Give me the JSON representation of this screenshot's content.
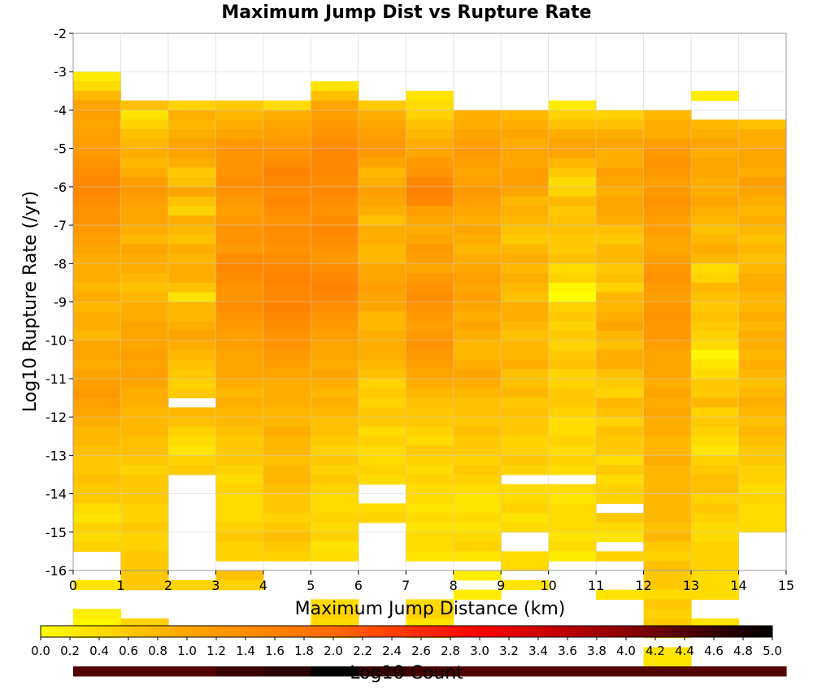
{
  "chart_data": {
    "type": "heatmap",
    "title": "Maximum Jump Dist vs Rupture Rate",
    "xlabel": "Maximum Jump Distance (km)",
    "ylabel": "Log10 Rupture Rate (/yr)",
    "colorbar_label": "Log10 Count",
    "xlim": [
      0,
      15
    ],
    "ylim": [
      -16,
      -2
    ],
    "x_ticks": [
      "0",
      "1",
      "2",
      "3",
      "4",
      "5",
      "6",
      "7",
      "8",
      "9",
      "10",
      "11",
      "12",
      "13",
      "14",
      "15"
    ],
    "y_ticks": [
      "-2",
      "-3",
      "-4",
      "-5",
      "-6",
      "-7",
      "-8",
      "-9",
      "-10",
      "-11",
      "-12",
      "-13",
      "-14",
      "-15",
      "-16"
    ],
    "colorbar_ticks": [
      "0.0",
      "0.2",
      "0.4",
      "0.6",
      "0.8",
      "1.0",
      "1.2",
      "1.4",
      "1.6",
      "1.8",
      "2.0",
      "2.2",
      "2.4",
      "2.6",
      "2.8",
      "3.0",
      "3.2",
      "3.4",
      "3.6",
      "3.8",
      "4.0",
      "4.2",
      "4.4",
      "4.6",
      "4.8",
      "5.0"
    ],
    "color_range": [
      0,
      5
    ],
    "colormap": [
      "#ffff00",
      "#ffa500",
      "#ff6a00",
      "#ff0000",
      "#8b0000",
      "#000000"
    ],
    "x_bin_edges": [
      0,
      1,
      2,
      3,
      4,
      5,
      6,
      7,
      8,
      9,
      10,
      11,
      12,
      13,
      14,
      15
    ],
    "y_bin_width": 0.25,
    "y_bin_top": -2,
    "grid": true,
    "columns": [
      [
        null,
        null,
        null,
        null,
        0.2,
        0.4,
        0.8,
        1.0,
        1.1,
        1.0,
        1.1,
        1.1,
        1.2,
        1.3,
        1.4,
        1.5,
        1.5,
        1.4,
        1.3,
        1.3,
        1.2,
        1.1,
        1.0,
        0.9,
        0.9,
        0.9,
        0.8,
        0.9,
        0.8,
        0.9,
        0.9,
        0.8,
        1.0,
        1.0,
        0.9,
        1.0,
        1.1,
        1.2,
        1.1,
        1.0,
        0.9,
        0.8,
        0.8,
        0.7,
        0.6,
        0.6,
        0.7,
        0.6,
        0.6,
        0.4,
        0.3,
        0.5,
        0.4,
        0.5,
        null,
        null,
        null,
        0.3,
        null,
        null,
        0.2,
        0.1,
        0.1,
        null,
        null,
        null,
        4.4
      ],
      [
        null,
        null,
        null,
        null,
        null,
        null,
        null,
        0.7,
        0.3,
        0.5,
        0.7,
        0.8,
        0.9,
        0.8,
        0.9,
        1.1,
        1.2,
        1.1,
        1.0,
        1.0,
        0.9,
        0.8,
        1.0,
        0.9,
        0.9,
        0.8,
        0.7,
        0.8,
        0.9,
        0.9,
        1.0,
        1.0,
        1.0,
        1.1,
        1.0,
        1.1,
        1.0,
        0.9,
        0.9,
        0.8,
        0.8,
        0.8,
        0.7,
        0.7,
        0.6,
        0.5,
        0.6,
        0.6,
        0.6,
        0.5,
        0.5,
        0.6,
        0.5,
        0.5,
        0.6,
        0.6,
        0.6,
        0.6,
        null,
        null,
        null,
        0.5,
        null,
        null,
        null,
        null,
        4.4
      ],
      [
        null,
        null,
        null,
        null,
        null,
        null,
        null,
        0.5,
        0.9,
        0.8,
        0.9,
        1.0,
        1.0,
        0.9,
        0.6,
        0.7,
        1.0,
        0.7,
        0.5,
        0.9,
        0.8,
        0.7,
        0.9,
        0.8,
        0.9,
        0.9,
        0.7,
        0.3,
        0.8,
        0.8,
        0.9,
        1.0,
        0.9,
        0.8,
        0.7,
        0.6,
        0.5,
        0.6,
        null,
        0.8,
        0.7,
        0.5,
        0.4,
        0.3,
        0.5,
        0.6,
        null,
        null,
        null,
        null,
        null,
        null,
        null,
        null,
        null,
        null,
        null,
        0.5,
        null,
        null,
        null,
        null,
        null,
        null,
        null,
        null,
        4.4
      ],
      [
        null,
        null,
        null,
        null,
        null,
        null,
        null,
        0.6,
        0.8,
        0.9,
        1.0,
        1.2,
        1.3,
        1.3,
        1.3,
        1.4,
        1.3,
        1.2,
        1.1,
        1.2,
        1.3,
        1.3,
        1.2,
        1.4,
        1.5,
        1.4,
        1.3,
        1.3,
        1.4,
        1.3,
        1.2,
        1.1,
        1.1,
        1.0,
        1.0,
        1.0,
        0.9,
        0.8,
        0.9,
        0.8,
        0.8,
        0.7,
        0.6,
        0.6,
        0.6,
        0.5,
        0.4,
        0.5,
        0.4,
        0.4,
        0.4,
        0.5,
        0.6,
        0.5,
        0.5,
        null,
        0.7,
        0.5,
        null,
        null,
        null,
        null,
        null,
        null,
        null,
        null,
        4.6
      ],
      [
        null,
        null,
        null,
        null,
        null,
        null,
        null,
        0.4,
        0.9,
        1.0,
        1.1,
        1.2,
        1.3,
        1.4,
        1.6,
        1.5,
        1.4,
        1.5,
        1.4,
        1.3,
        1.4,
        1.4,
        1.3,
        1.4,
        1.5,
        1.6,
        1.5,
        1.5,
        1.6,
        1.5,
        1.4,
        1.3,
        1.3,
        1.2,
        1.1,
        1.0,
        0.9,
        0.9,
        0.9,
        0.8,
        0.8,
        0.9,
        0.8,
        0.8,
        0.7,
        0.8,
        0.8,
        0.7,
        0.6,
        0.6,
        0.5,
        0.6,
        0.7,
        0.6,
        0.5,
        null,
        null,
        null,
        null,
        null,
        null,
        null,
        null,
        null,
        null,
        null,
        4.7
      ],
      [
        null,
        null,
        null,
        null,
        null,
        0.3,
        0.7,
        1.0,
        1.1,
        1.2,
        1.3,
        1.4,
        1.5,
        1.5,
        1.5,
        1.4,
        1.5,
        1.4,
        1.3,
        1.4,
        1.5,
        1.4,
        1.3,
        1.2,
        1.4,
        1.5,
        1.6,
        1.5,
        1.4,
        1.3,
        1.2,
        1.1,
        1.0,
        1.0,
        0.9,
        1.0,
        0.9,
        0.8,
        0.9,
        0.8,
        0.7,
        0.7,
        0.6,
        0.5,
        0.6,
        0.5,
        0.6,
        0.5,
        0.4,
        0.4,
        0.5,
        0.4,
        0.5,
        0.3,
        0.4,
        null,
        null,
        null,
        null,
        0.4,
        0.5,
        0.4,
        0.3,
        null,
        null,
        null,
        5.0
      ],
      [
        null,
        null,
        null,
        null,
        null,
        null,
        null,
        0.6,
        0.9,
        1.0,
        1.1,
        1.2,
        1.2,
        1.0,
        0.8,
        0.9,
        1.1,
        1.0,
        0.9,
        0.7,
        0.9,
        0.9,
        0.8,
        0.8,
        1.0,
        1.0,
        1.1,
        1.0,
        1.0,
        0.8,
        0.8,
        0.9,
        0.9,
        0.9,
        0.8,
        0.7,
        0.5,
        0.6,
        0.5,
        0.6,
        0.6,
        0.4,
        0.5,
        0.4,
        0.4,
        0.5,
        0.4,
        null,
        null,
        0.4,
        0.5,
        null,
        null,
        null,
        null,
        null,
        null,
        null,
        null,
        null,
        null,
        null,
        null,
        null,
        null,
        null,
        4.6
      ],
      [
        null,
        null,
        null,
        null,
        null,
        null,
        0.3,
        0.4,
        0.5,
        0.7,
        0.8,
        0.9,
        1.0,
        1.2,
        1.3,
        1.5,
        1.6,
        1.5,
        1.1,
        1.0,
        0.9,
        1.0,
        1.2,
        1.1,
        1.0,
        1.2,
        1.3,
        1.4,
        1.3,
        1.2,
        1.1,
        1.2,
        1.3,
        1.2,
        1.1,
        1.0,
        0.9,
        0.8,
        0.7,
        0.6,
        0.6,
        0.5,
        0.4,
        0.6,
        0.5,
        0.4,
        0.5,
        0.4,
        0.4,
        0.3,
        0.4,
        0.3,
        0.4,
        0.4,
        0.3,
        null,
        null,
        null,
        null,
        0.4,
        0.5,
        0.3,
        0.5,
        null,
        null,
        null,
        4.5
      ],
      [
        null,
        null,
        null,
        null,
        null,
        null,
        null,
        null,
        0.9,
        0.9,
        1.0,
        1.1,
        1.2,
        1.1,
        1.0,
        1.1,
        1.2,
        1.1,
        1.0,
        0.9,
        1.0,
        0.9,
        0.8,
        0.9,
        1.0,
        1.1,
        1.0,
        1.1,
        1.0,
        0.9,
        1.0,
        0.9,
        0.8,
        0.8,
        0.9,
        1.0,
        0.9,
        0.8,
        0.7,
        0.7,
        0.6,
        0.7,
        0.6,
        0.6,
        0.5,
        0.6,
        0.5,
        0.4,
        0.3,
        0.3,
        0.4,
        0.3,
        0.4,
        0.5,
        0.3,
        null,
        0.2,
        null,
        0.2,
        null,
        null,
        null,
        null,
        null,
        null,
        null,
        4.4
      ],
      [
        null,
        null,
        null,
        null,
        null,
        null,
        null,
        null,
        0.8,
        0.9,
        1.0,
        0.9,
        1.0,
        1.0,
        1.1,
        1.1,
        1.0,
        0.8,
        0.9,
        0.8,
        0.7,
        0.6,
        0.8,
        0.9,
        0.8,
        0.9,
        0.8,
        0.7,
        0.9,
        0.9,
        0.8,
        0.7,
        0.8,
        0.8,
        0.9,
        0.7,
        0.7,
        0.8,
        0.6,
        0.7,
        0.6,
        0.6,
        0.5,
        0.5,
        0.6,
        0.5,
        null,
        0.4,
        0.4,
        0.5,
        0.3,
        0.4,
        null,
        null,
        0.4,
        0.4,
        null,
        0.3,
        null,
        null,
        null,
        null,
        null,
        null,
        null,
        null,
        4.4
      ],
      [
        null,
        null,
        null,
        null,
        null,
        null,
        null,
        0.2,
        0.5,
        0.7,
        0.9,
        1.0,
        1.0,
        0.8,
        0.6,
        0.4,
        0.5,
        0.8,
        0.6,
        0.7,
        0.7,
        0.6,
        0.6,
        0.7,
        0.4,
        0.5,
        0.1,
        0.0,
        0.5,
        0.6,
        0.5,
        0.6,
        0.5,
        0.6,
        0.7,
        0.5,
        0.5,
        0.6,
        0.6,
        0.5,
        0.4,
        0.4,
        0.5,
        0.4,
        0.5,
        0.4,
        null,
        0.4,
        0.3,
        0.4,
        0.4,
        0.4,
        0.3,
        0.4,
        0.2,
        null,
        null,
        null,
        null,
        null,
        null,
        null,
        null,
        null,
        null,
        null,
        4.4
      ],
      [
        null,
        null,
        null,
        null,
        null,
        null,
        null,
        null,
        0.5,
        0.7,
        0.9,
        1.0,
        0.9,
        0.9,
        1.1,
        1.0,
        0.9,
        1.0,
        1.0,
        0.9,
        0.7,
        0.6,
        0.8,
        0.8,
        0.6,
        0.7,
        0.5,
        0.8,
        0.8,
        0.9,
        1.0,
        0.8,
        0.7,
        0.9,
        0.9,
        0.7,
        0.6,
        0.5,
        0.8,
        0.7,
        0.5,
        0.7,
        0.6,
        0.6,
        0.4,
        0.6,
        0.4,
        0.5,
        0.5,
        null,
        0.6,
        0.4,
        0.3,
        null,
        0.5,
        null,
        null,
        null,
        0.3,
        null,
        null,
        null,
        null,
        null,
        null,
        null,
        4.4
      ],
      [
        null,
        null,
        null,
        null,
        null,
        null,
        null,
        null,
        0.8,
        0.9,
        0.9,
        1.1,
        1.2,
        1.3,
        1.2,
        1.1,
        1.2,
        1.3,
        1.2,
        1.1,
        1.1,
        1.0,
        1.0,
        1.1,
        1.2,
        1.3,
        1.2,
        1.1,
        1.2,
        1.3,
        1.2,
        1.2,
        1.1,
        1.0,
        1.0,
        1.0,
        0.9,
        1.0,
        0.9,
        1.0,
        0.9,
        0.9,
        0.8,
        0.8,
        0.9,
        0.8,
        0.8,
        0.8,
        0.8,
        0.8,
        0.8,
        0.7,
        0.8,
        0.6,
        0.5,
        0.7,
        0.6,
        0.6,
        0.4,
        0.6,
        0.5,
        0.6,
        0.5,
        null,
        0.3,
        0.3,
        4.4
      ],
      [
        null,
        null,
        null,
        null,
        null,
        null,
        0.2,
        null,
        null,
        0.8,
        0.9,
        1.0,
        0.9,
        1.0,
        1.0,
        0.9,
        0.9,
        1.0,
        0.9,
        0.8,
        0.7,
        0.8,
        0.9,
        0.8,
        0.4,
        0.5,
        0.8,
        0.7,
        0.6,
        0.7,
        0.6,
        0.5,
        0.4,
        0.1,
        0.3,
        0.4,
        0.6,
        0.6,
        0.8,
        0.5,
        0.6,
        0.5,
        0.4,
        0.3,
        0.5,
        0.6,
        0.7,
        0.7,
        0.5,
        0.6,
        0.5,
        0.4,
        0.4,
        0.5,
        0.5,
        0.5,
        0.4,
        0.4,
        0.4,
        null,
        null,
        0.3,
        null,
        null,
        null,
        null,
        4.4
      ],
      [
        null,
        null,
        null,
        null,
        null,
        null,
        null,
        null,
        null,
        0.7,
        0.9,
        0.9,
        1.0,
        1.0,
        0.9,
        1.1,
        1.0,
        0.9,
        0.8,
        0.9,
        0.8,
        0.7,
        0.8,
        0.7,
        0.8,
        0.9,
        0.9,
        0.8,
        0.8,
        0.9,
        0.8,
        0.9,
        0.9,
        0.8,
        0.9,
        0.8,
        0.7,
        0.8,
        0.9,
        0.8,
        0.7,
        0.8,
        0.7,
        0.6,
        0.6,
        0.5,
        0.5,
        0.4,
        0.5,
        0.4,
        0.4,
        0.4,
        null,
        null,
        null,
        null,
        null,
        null,
        null,
        null,
        null,
        null,
        null,
        null,
        null,
        null,
        4.4
      ]
    ]
  }
}
